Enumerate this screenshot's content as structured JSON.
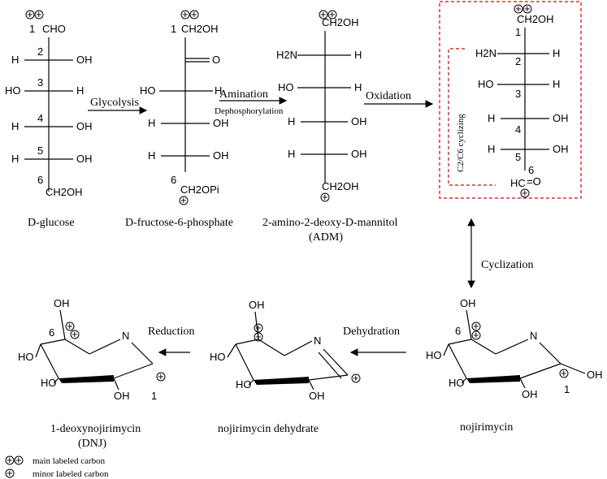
{
  "compounds": {
    "glucose": "D-glucose",
    "fructose": "D-fructose-6-phosphate",
    "adm_line1": "2-amino-2-deoxy-D-mannitol",
    "adm_line2": "(ADM)",
    "dnj_line1": "1-deoxynojirimycin",
    "dnj_line2": "(DNJ)",
    "dehydrate": "nojirimycin dehydrate",
    "nojirimycin": "nojirimycin"
  },
  "steps": {
    "glycolysis": "Glycolysis",
    "amination": "Amination",
    "dephosphorylation": "Dephosphorylation",
    "oxidation": "Oxidation",
    "cyclization": "Cyclization",
    "cyclizing": "C2/C6 cyclizing",
    "dehydration": "Dehydration",
    "reduction": "Reduction"
  },
  "legend": {
    "main": "main labeled carbon",
    "minor": "minor labeled carbon"
  },
  "atoms": {
    "cho": "CHO",
    "ch2oh": "CH2OH",
    "ch2opi": "CH2OPi",
    "h": "H",
    "oh": "OH",
    "ho": "HO",
    "o": "O",
    "h2n": "H2N",
    "n": "N",
    "hc": "HC",
    "eq_o": "=O"
  },
  "colors": {
    "highlight_box": "#e03030"
  }
}
